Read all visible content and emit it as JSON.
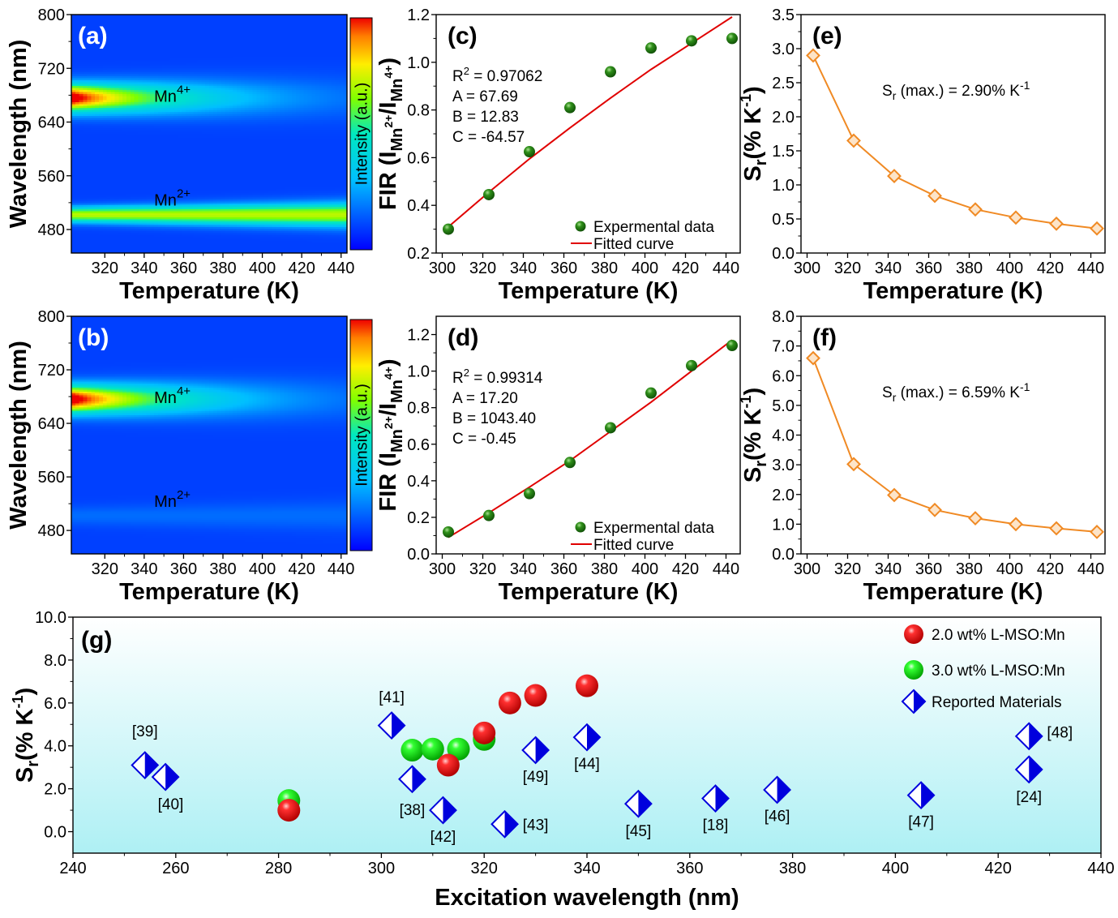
{
  "chart_data": [
    {
      "panel": "(a)",
      "type": "heatmap",
      "xlabel": "Temperature (K)",
      "ylabel": "Wavelength (nm)",
      "xlim": [
        303,
        443
      ],
      "ylim": [
        445,
        800
      ],
      "xticks": [
        320,
        340,
        360,
        380,
        400,
        420,
        440
      ],
      "yticks": [
        480,
        560,
        640,
        720,
        800
      ],
      "colorbar_label": "Intensity (a.u.)",
      "annotations": [
        {
          "text": "Mn4+",
          "base": "Mn",
          "sup": "4+",
          "x": 350,
          "y": 680
        },
        {
          "text": "Mn2+",
          "base": "Mn",
          "sup": "2+",
          "x": 350,
          "y": 525
        }
      ],
      "bands": [
        {
          "center": 676,
          "width": 20,
          "peak": 1.0,
          "decay": 0.018
        },
        {
          "center": 502,
          "width": 11,
          "peak": 0.62,
          "decay": 0.0
        }
      ]
    },
    {
      "panel": "(b)",
      "type": "heatmap",
      "xlabel": "Temperature (K)",
      "ylabel": "Wavelength (nm)",
      "xlim": [
        303,
        443
      ],
      "ylim": [
        445,
        800
      ],
      "xticks": [
        320,
        340,
        360,
        380,
        400,
        420,
        440
      ],
      "yticks": [
        480,
        560,
        640,
        720,
        800
      ],
      "colorbar_label": "Intensity (a.u.)",
      "annotations": [
        {
          "text": "Mn4+",
          "base": "Mn",
          "sup": "4+",
          "x": 350,
          "y": 680
        },
        {
          "text": "Mn2+",
          "base": "Mn",
          "sup": "2+",
          "x": 350,
          "y": 525
        }
      ],
      "bands": [
        {
          "center": 676,
          "width": 20,
          "peak": 1.0,
          "decay": 0.018
        },
        {
          "center": 502,
          "width": 14,
          "peak": 0.07,
          "decay": 0.0
        }
      ]
    },
    {
      "panel": "(c)",
      "type": "scatter",
      "xlabel": "Temperature (K)",
      "ylabel": "FIR (I_Mn2+/I_Mn4+)",
      "xlim": [
        297,
        447
      ],
      "ylim": [
        0.2,
        1.2
      ],
      "xticks": [
        300,
        320,
        340,
        360,
        380,
        400,
        420,
        440
      ],
      "yticks": [
        0.2,
        0.4,
        0.6,
        0.8,
        1.0,
        1.2
      ],
      "x": [
        303,
        323,
        343,
        363,
        383,
        403,
        423,
        443
      ],
      "series": [
        {
          "name": "Expermental data",
          "values": [
            0.3,
            0.445,
            0.625,
            0.81,
            0.96,
            1.06,
            1.09,
            1.1
          ]
        },
        {
          "name": "Fitted curve",
          "values": [
            0.31,
            0.455,
            0.595,
            0.725,
            0.85,
            0.97,
            1.08,
            1.19
          ]
        }
      ],
      "annotations": [
        "R2 = 0.97062",
        "A = 67.69",
        "B = 12.83",
        "C = -64.57"
      ],
      "legend": "bottom-right"
    },
    {
      "panel": "(d)",
      "type": "scatter",
      "xlabel": "Temperature (K)",
      "ylabel": "FIR (I_Mn2+/I_Mn4+)",
      "xlim": [
        297,
        447
      ],
      "ylim": [
        0.0,
        1.3
      ],
      "xticks": [
        300,
        320,
        340,
        360,
        380,
        400,
        420,
        440
      ],
      "yticks": [
        0.0,
        0.2,
        0.4,
        0.6,
        0.8,
        1.0,
        1.2
      ],
      "x": [
        303,
        323,
        343,
        363,
        383,
        403,
        423,
        443
      ],
      "series": [
        {
          "name": "Expermental data",
          "values": [
            0.12,
            0.21,
            0.33,
            0.5,
            0.69,
            0.88,
            1.03,
            1.14
          ]
        },
        {
          "name": "Fitted curve",
          "values": [
            0.09,
            0.225,
            0.365,
            0.51,
            0.67,
            0.83,
            1.0,
            1.17
          ]
        }
      ],
      "annotations": [
        "R2 = 0.99314",
        "A = 17.20",
        "B = 1043.40",
        "C = -0.45"
      ],
      "legend": "bottom-right"
    },
    {
      "panel": "(e)",
      "type": "line",
      "xlabel": "Temperature (K)",
      "ylabel": "Sr (% K-1)",
      "xlim": [
        297,
        447
      ],
      "ylim": [
        0.0,
        3.5
      ],
      "xticks": [
        300,
        320,
        340,
        360,
        380,
        400,
        420,
        440
      ],
      "yticks": [
        0.0,
        0.5,
        1.0,
        1.5,
        2.0,
        2.5,
        3.0,
        3.5
      ],
      "x": [
        303,
        323,
        343,
        363,
        383,
        403,
        423,
        443
      ],
      "series": [
        {
          "values": [
            2.9,
            1.65,
            1.13,
            0.84,
            0.64,
            0.52,
            0.43,
            0.36
          ]
        }
      ],
      "annotation": "Sr (max.) = 2.90% K-1",
      "annotation_parts": [
        "S",
        "r",
        " (max.) = 2.90% K",
        "-1"
      ]
    },
    {
      "panel": "(f)",
      "type": "line",
      "xlabel": "Temperature (K)",
      "ylabel": "Sr (% K-1)",
      "xlim": [
        297,
        447
      ],
      "ylim": [
        0.0,
        8.0
      ],
      "xticks": [
        300,
        320,
        340,
        360,
        380,
        400,
        420,
        440
      ],
      "yticks": [
        0.0,
        1.0,
        2.0,
        3.0,
        4.0,
        5.0,
        6.0,
        7.0,
        8.0
      ],
      "x": [
        303,
        323,
        343,
        363,
        383,
        403,
        423,
        443
      ],
      "series": [
        {
          "values": [
            6.59,
            3.02,
            1.98,
            1.48,
            1.2,
            1.0,
            0.86,
            0.74
          ]
        }
      ],
      "annotation": "Sr (max.) = 6.59% K-1",
      "annotation_parts": [
        "S",
        "r",
        " (max.) = 6.59% K",
        "-1"
      ]
    },
    {
      "panel": "(g)",
      "type": "scatter",
      "xlabel": "Excitation wavelength (nm)",
      "ylabel": "Sr (% K-1)",
      "xlim": [
        240,
        440
      ],
      "ylim": [
        -1.0,
        10.0
      ],
      "xticks": [
        240,
        260,
        280,
        300,
        320,
        340,
        360,
        380,
        400,
        420,
        440
      ],
      "yticks": [
        0.0,
        2.0,
        4.0,
        6.0,
        8.0,
        10.0
      ],
      "legend": "top-right",
      "series": [
        {
          "name": "2.0 wt% L-MSO:Mn",
          "points": [
            [
              282,
              1.0
            ],
            [
              313,
              3.1
            ],
            [
              320,
              4.6
            ],
            [
              325,
              6.0
            ],
            [
              330,
              6.35
            ],
            [
              340,
              6.8
            ]
          ]
        },
        {
          "name": "3.0 wt% L-MSO:Mn",
          "points": [
            [
              282,
              1.45
            ],
            [
              306,
              3.8
            ],
            [
              310,
              3.85
            ],
            [
              315,
              3.85
            ],
            [
              320,
              4.3
            ]
          ]
        },
        {
          "name": "Reported Materials",
          "points": [
            {
              "x": 254,
              "y": 3.1,
              "label": "[39]",
              "lx": 254,
              "ly": 4.7
            },
            {
              "x": 258,
              "y": 2.55,
              "label": "[40]",
              "lx": 259,
              "ly": 1.3
            },
            {
              "x": 302,
              "y": 4.95,
              "label": "[41]",
              "lx": 302,
              "ly": 6.3
            },
            {
              "x": 306,
              "y": 2.45,
              "label": "[38]",
              "lx": 306,
              "ly": 1.05
            },
            {
              "x": 312,
              "y": 1.0,
              "label": "[42]",
              "lx": 312,
              "ly": -0.2
            },
            {
              "x": 324,
              "y": 0.35,
              "label": "[43]",
              "lx": 330,
              "ly": 0.35
            },
            {
              "x": 330,
              "y": 3.8,
              "label": "[49]",
              "lx": 330,
              "ly": 2.6
            },
            {
              "x": 340,
              "y": 4.4,
              "label": "[44]",
              "lx": 340,
              "ly": 3.2
            },
            {
              "x": 350,
              "y": 1.3,
              "label": "[45]",
              "lx": 350,
              "ly": 0.05
            },
            {
              "x": 365,
              "y": 1.55,
              "label": "[18]",
              "lx": 365,
              "ly": 0.35
            },
            {
              "x": 377,
              "y": 1.95,
              "label": "[46]",
              "lx": 377,
              "ly": 0.75
            },
            {
              "x": 405,
              "y": 1.7,
              "label": "[47]",
              "lx": 405,
              "ly": 0.5
            },
            {
              "x": 426,
              "y": 4.45,
              "label": "[48]",
              "lx": 432,
              "ly": 4.65
            },
            {
              "x": 426,
              "y": 2.9,
              "label": "[24]",
              "lx": 426,
              "ly": 1.65
            }
          ]
        }
      ]
    }
  ]
}
